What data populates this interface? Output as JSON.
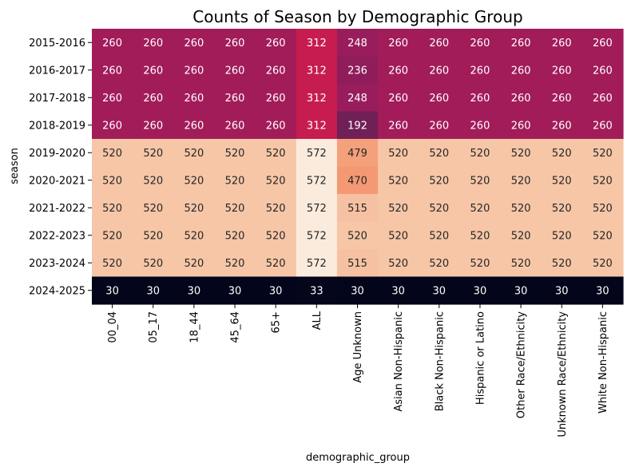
{
  "chart_data": {
    "type": "heatmap",
    "title": "Counts of Season by Demographic Group",
    "xlabel": "demographic_group",
    "ylabel": "season",
    "rows": [
      "2015-2016",
      "2016-2017",
      "2017-2018",
      "2018-2019",
      "2019-2020",
      "2020-2021",
      "2021-2022",
      "2022-2023",
      "2023-2024",
      "2024-2025"
    ],
    "columns": [
      "00_04",
      "05_17",
      "18_44",
      "45_64",
      "65+",
      "ALL",
      "Age Unknown",
      "Asian Non-Hispanic",
      "Black Non-Hispanic",
      "Hispanic or Latino",
      "Other Race/Ethnicity",
      "Unknown Race/Ethnicity",
      "White Non-Hispanic"
    ],
    "values": [
      [
        260,
        260,
        260,
        260,
        260,
        312,
        248,
        260,
        260,
        260,
        260,
        260,
        260
      ],
      [
        260,
        260,
        260,
        260,
        260,
        312,
        236,
        260,
        260,
        260,
        260,
        260,
        260
      ],
      [
        260,
        260,
        260,
        260,
        260,
        312,
        248,
        260,
        260,
        260,
        260,
        260,
        260
      ],
      [
        260,
        260,
        260,
        260,
        260,
        312,
        192,
        260,
        260,
        260,
        260,
        260,
        260
      ],
      [
        520,
        520,
        520,
        520,
        520,
        572,
        479,
        520,
        520,
        520,
        520,
        520,
        520
      ],
      [
        520,
        520,
        520,
        520,
        520,
        572,
        470,
        520,
        520,
        520,
        520,
        520,
        520
      ],
      [
        520,
        520,
        520,
        520,
        520,
        572,
        515,
        520,
        520,
        520,
        520,
        520,
        520
      ],
      [
        520,
        520,
        520,
        520,
        520,
        572,
        520,
        520,
        520,
        520,
        520,
        520,
        520
      ],
      [
        520,
        520,
        520,
        520,
        520,
        572,
        515,
        520,
        520,
        520,
        520,
        520,
        520
      ],
      [
        30,
        30,
        30,
        30,
        30,
        33,
        30,
        30,
        30,
        30,
        30,
        30,
        30
      ]
    ],
    "colormap": "rocket",
    "value_range": [
      30,
      572
    ],
    "annotations": true,
    "grid": false,
    "colorbar": false
  }
}
